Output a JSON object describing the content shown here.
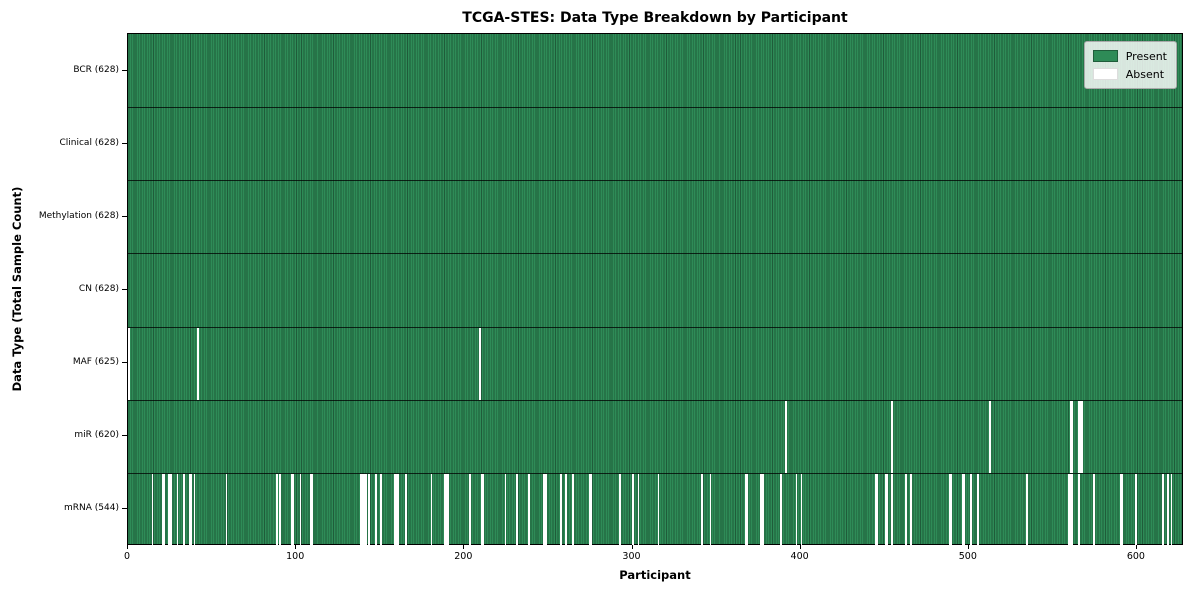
{
  "chart_data": {
    "type": "heatmap",
    "title": "TCGA-STES: Data Type Breakdown by Participant",
    "xlabel": "Participant",
    "ylabel": "Data Type (Total Sample Count)",
    "n_participants": 628,
    "x_tick_values": [
      0,
      100,
      200,
      300,
      400,
      500,
      600
    ],
    "x_tick_labels": [
      "0",
      "100",
      "200",
      "300",
      "400",
      "500",
      "600"
    ],
    "colors": {
      "present": "#2e8b57",
      "present_edge": "#1f5c3a",
      "absent": "#ffffff",
      "grid_line": "#000000"
    },
    "legend": {
      "position": "upper right",
      "entries": [
        {
          "label": "Present",
          "color": "#2e8b57"
        },
        {
          "label": "Absent",
          "color": "#ffffff"
        }
      ]
    },
    "rows": [
      {
        "label": "BCR (628)",
        "data_type": "BCR",
        "present_count": 628,
        "absent_count": 0,
        "absent_participants": []
      },
      {
        "label": "Clinical (628)",
        "data_type": "Clinical",
        "present_count": 628,
        "absent_count": 0,
        "absent_participants": []
      },
      {
        "label": "Methylation (628)",
        "data_type": "Methylation",
        "present_count": 628,
        "absent_count": 0,
        "absent_participants": []
      },
      {
        "label": "CN (628)",
        "data_type": "CN",
        "present_count": 628,
        "absent_count": 0,
        "absent_participants": []
      },
      {
        "label": "MAF (625)",
        "data_type": "MAF",
        "present_count": 625,
        "absent_count": 3,
        "absent_participants": [
          0,
          41,
          209
        ]
      },
      {
        "label": "miR (620)",
        "data_type": "miR",
        "present_count": 620,
        "absent_count": 8,
        "absent_participants": [
          391,
          454,
          512,
          560,
          561,
          565,
          566,
          567
        ]
      },
      {
        "label": "mRNA (544)",
        "data_type": "mRNA",
        "present_count": 544,
        "absent_count": 84,
        "absent_participants": [
          14,
          20,
          21,
          24,
          25,
          29,
          33,
          36,
          37,
          39,
          58,
          88,
          90,
          97,
          98,
          102,
          108,
          109,
          138,
          139,
          140,
          141,
          143,
          147,
          150,
          158,
          159,
          160,
          165,
          180,
          188,
          189,
          190,
          203,
          210,
          211,
          224,
          231,
          238,
          247,
          248,
          257,
          260,
          264,
          274,
          275,
          292,
          300,
          303,
          315,
          341,
          346,
          367,
          368,
          376,
          377,
          388,
          397,
          400,
          444,
          445,
          450,
          451,
          454,
          462,
          465,
          488,
          489,
          496,
          497,
          501,
          505,
          534,
          559,
          560,
          561,
          565,
          574,
          590,
          591,
          599,
          615,
          618,
          620
        ]
      }
    ]
  }
}
